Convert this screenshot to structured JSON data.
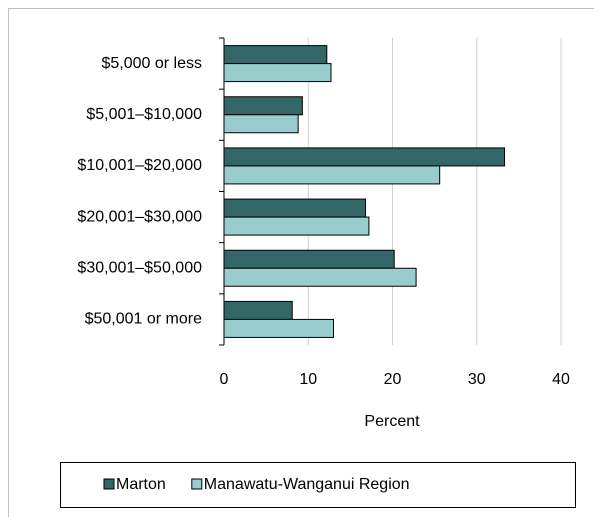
{
  "chart_data": {
    "type": "bar",
    "orientation": "horizontal",
    "categories": [
      "$5,000 or less",
      "$5,001–$10,000",
      "$10,001–$20,000",
      "$20,001–$30,000",
      "$30,001–$50,000",
      "$50,001 or more"
    ],
    "series": [
      {
        "name": "Marton",
        "color": "#336666",
        "values": [
          12.2,
          9.3,
          33.3,
          16.8,
          20.2,
          8.1
        ]
      },
      {
        "name": "Manawatu-Wanganui Region",
        "color": "#99cccc",
        "values": [
          12.7,
          8.8,
          25.6,
          17.2,
          22.8,
          13.0
        ]
      }
    ],
    "x_label": "Percent",
    "xlim": [
      0,
      40
    ],
    "xticks": [
      0,
      10,
      20,
      30,
      40
    ],
    "grid": true,
    "legend": "bottom"
  }
}
